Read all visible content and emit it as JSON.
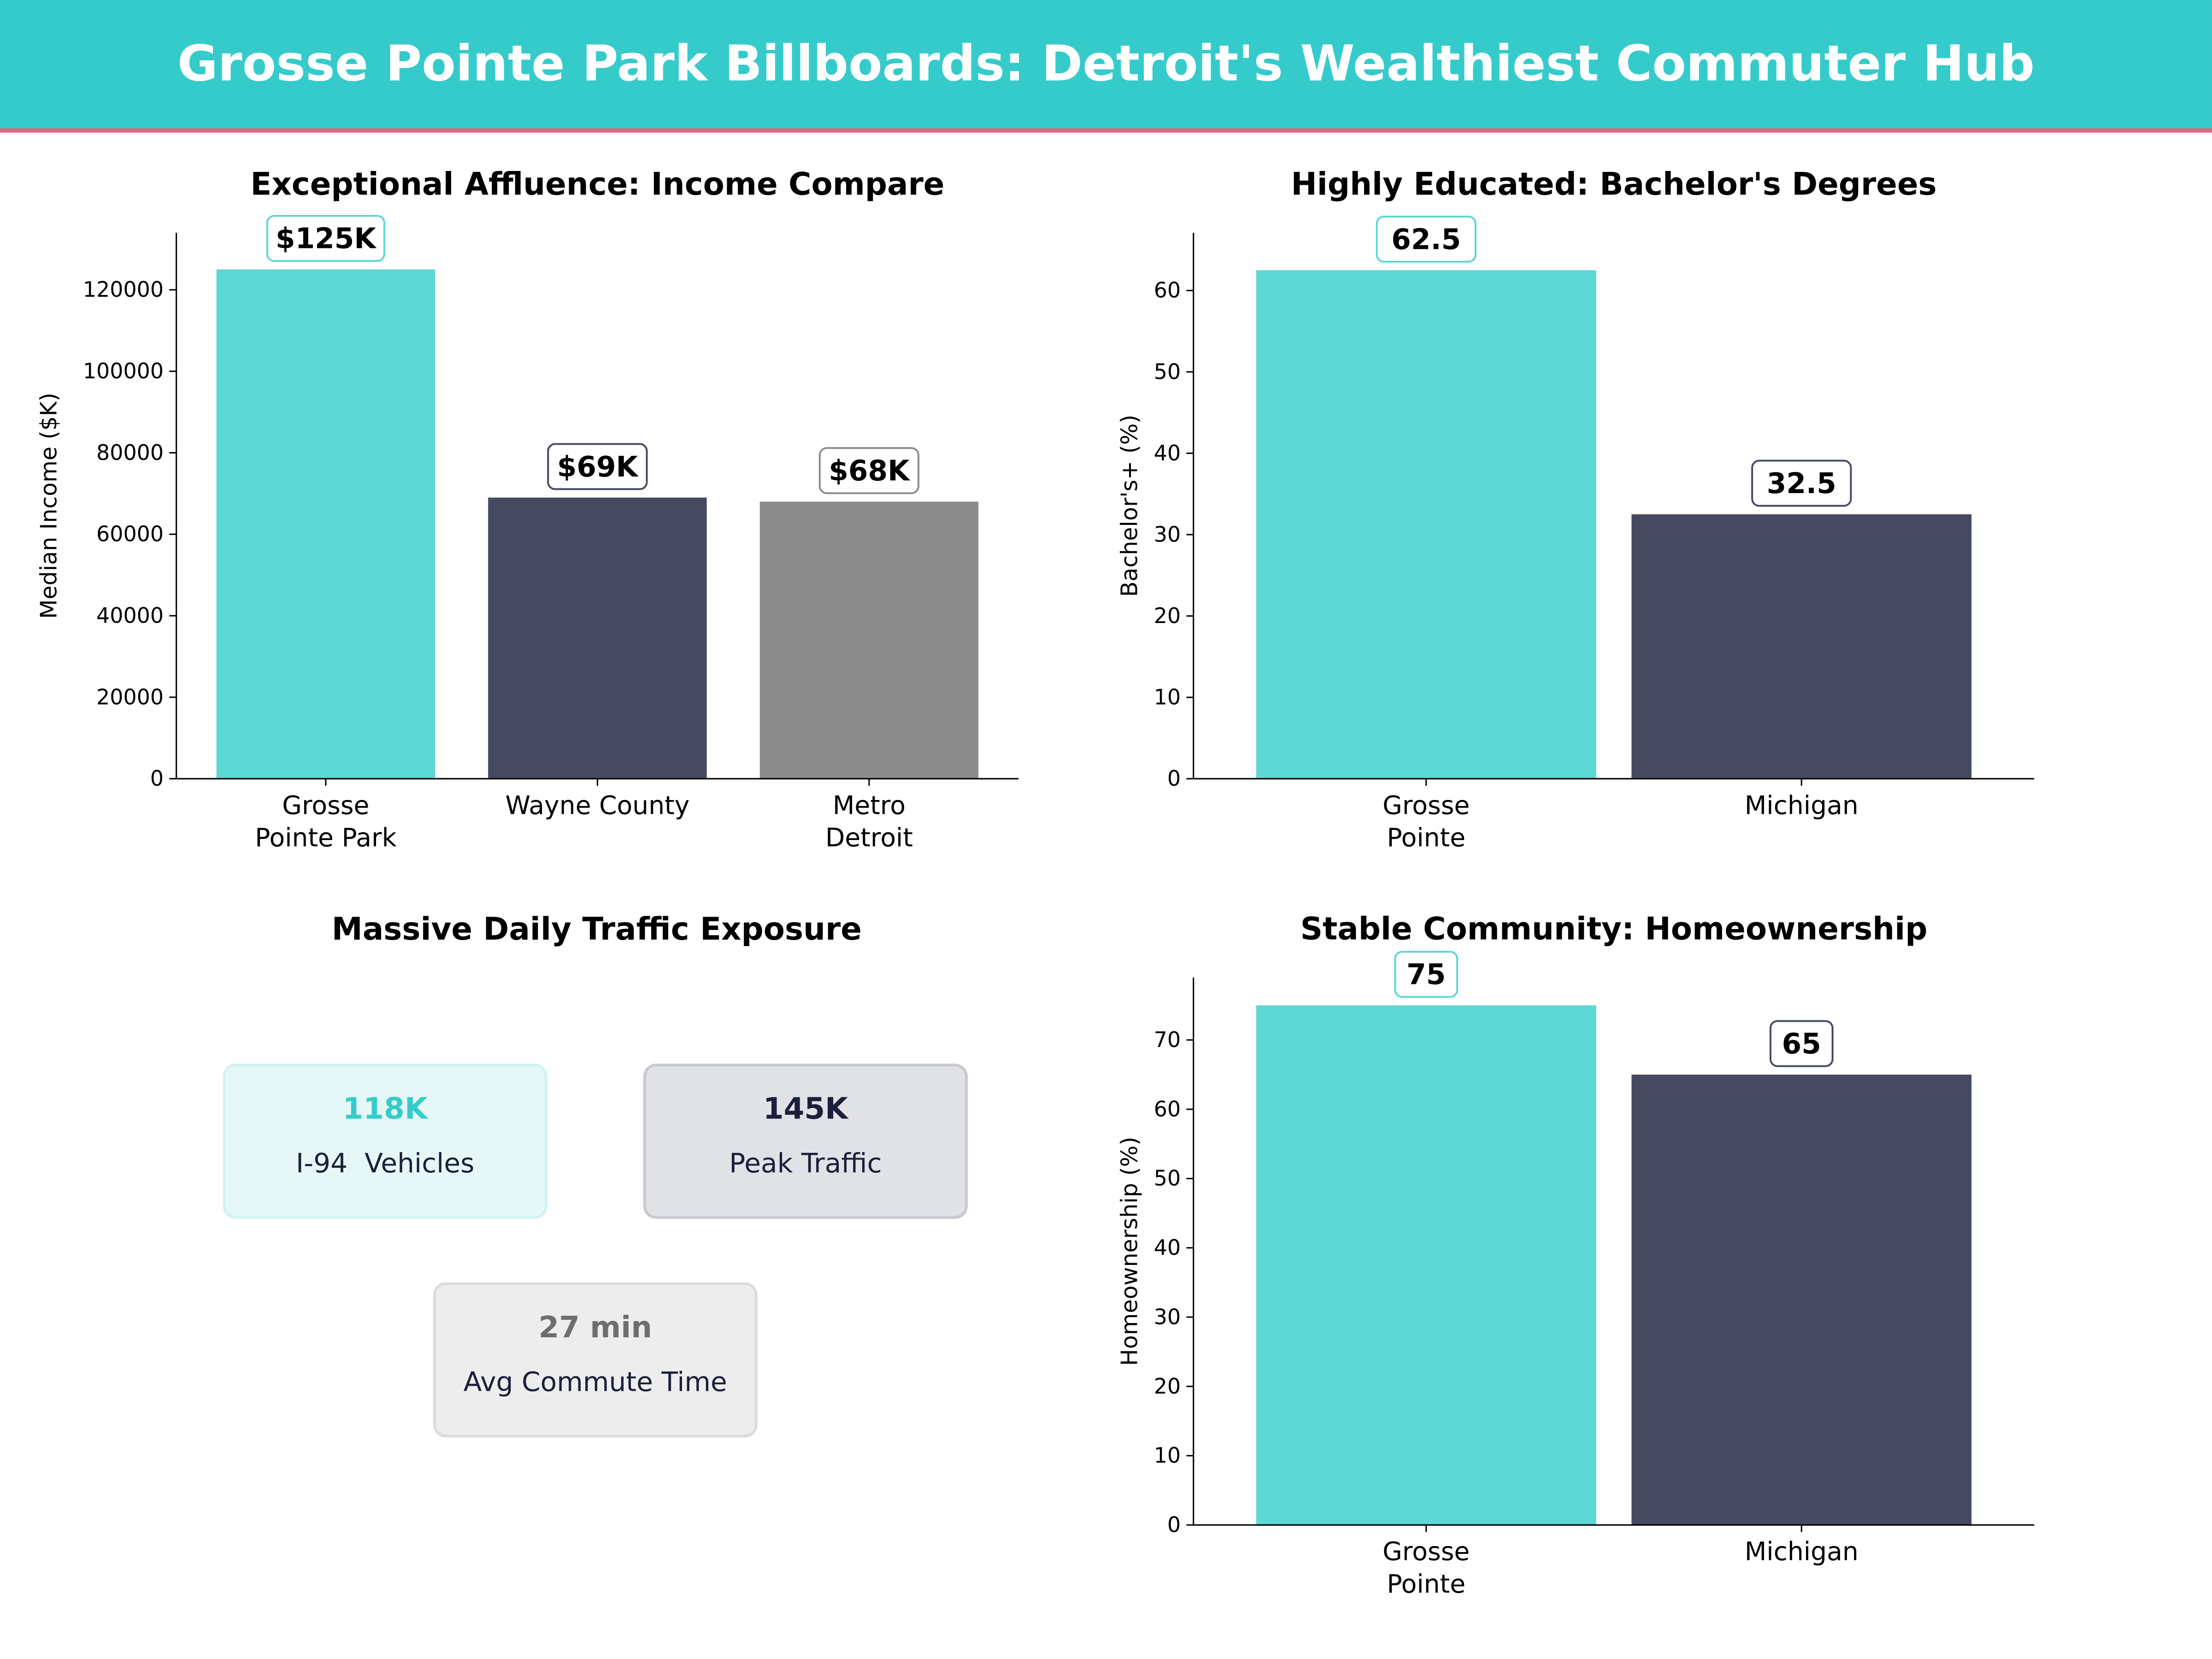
{
  "header": {
    "title": "Grosse Pointe Park Billboards: Detroit's Wealthiest Commuter Hub"
  },
  "colors": {
    "teal": "#5DD7D4",
    "navy": "#454A60",
    "gray": "#8C8C8C",
    "header": "#36CBCB",
    "accent_line": "#E8657A"
  },
  "chart_data": [
    {
      "type": "bar",
      "title": "Exceptional Affluence: Income Compare",
      "ylabel": "Median Income ($K)",
      "xlabel": "",
      "categories": [
        "Grosse\nPointe Park",
        "Wayne County",
        "Metro\nDetroit"
      ],
      "values": [
        125000,
        69000,
        68000
      ],
      "data_labels": [
        "$125K",
        "$69K",
        "$68K"
      ],
      "bar_colors": [
        "#5DD7D4",
        "#454A60",
        "#8C8C8C"
      ],
      "label_borders": [
        "#5DD7D4",
        "#454A60",
        "#8C8C8C"
      ],
      "ylim": [
        0,
        134000
      ],
      "yticks": [
        0,
        20000,
        40000,
        60000,
        80000,
        100000,
        120000
      ],
      "grid": false
    },
    {
      "type": "bar",
      "title": "Highly Educated: Bachelor's Degrees",
      "ylabel": "Bachelor's+ (%)",
      "xlabel": "",
      "categories": [
        "Grosse\nPointe",
        "Michigan"
      ],
      "values": [
        62.5,
        32.5
      ],
      "data_labels": [
        "62.5",
        "32.5"
      ],
      "bar_colors": [
        "#5DD7D4",
        "#454A60"
      ],
      "label_borders": [
        "#5DD7D4",
        "#454A60"
      ],
      "ylim": [
        0,
        67.1
      ],
      "yticks": [
        0,
        10,
        20,
        30,
        40,
        50,
        60
      ],
      "grid": false
    },
    {
      "type": "bar",
      "title": "Stable Community: Homeownership",
      "ylabel": "Homeownership (%)",
      "xlabel": "",
      "categories": [
        "Grosse\nPointe",
        "Michigan"
      ],
      "values": [
        75,
        65
      ],
      "data_labels": [
        "75",
        "65"
      ],
      "bar_colors": [
        "#5DD7D4",
        "#454A60"
      ],
      "label_borders": [
        "#5DD7D4",
        "#454A60"
      ],
      "ylim": [
        0,
        79
      ],
      "yticks": [
        0,
        10,
        20,
        30,
        40,
        50,
        60,
        70
      ],
      "grid": false
    }
  ],
  "traffic": {
    "title": "Massive Daily Traffic Exposure",
    "cards": [
      {
        "value": "118K",
        "label": "I-94  Vehicles",
        "value_color": "#36CBCB",
        "bg": "#E5F7F7",
        "border": "#D2F2F2"
      },
      {
        "value": "145K",
        "label": "Peak Traffic",
        "value_color": "#1B1F3B",
        "bg": "#E1E2E6",
        "border": "#C9CACF"
      },
      {
        "value": "27 min",
        "label": "Avg Commute Time",
        "value_color": "#6E6E6E",
        "bg": "#EDEDED",
        "border": "#DCDCDC"
      }
    ]
  }
}
